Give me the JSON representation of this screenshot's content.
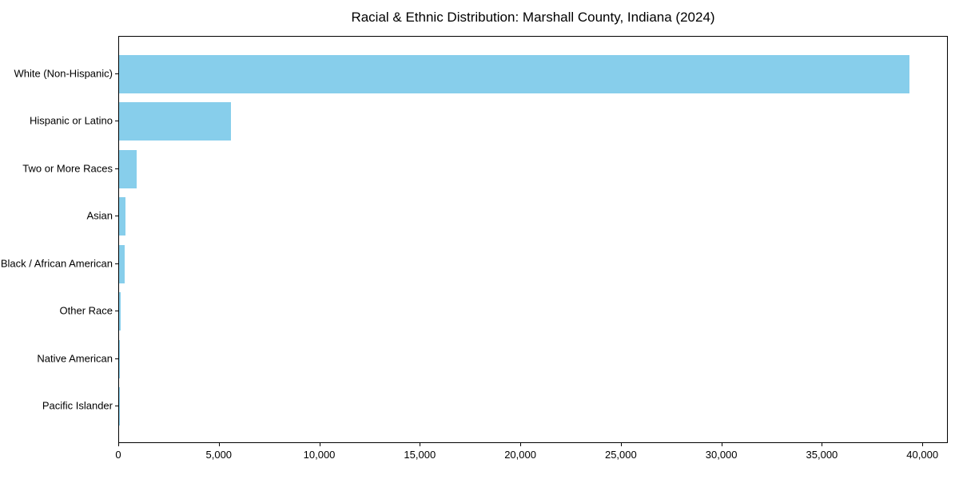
{
  "chart_data": {
    "type": "bar",
    "orientation": "horizontal",
    "title": "Racial & Ethnic Distribution: Marshall County, Indiana (2024)",
    "categories": [
      "White (Non-Hispanic)",
      "Hispanic or Latino",
      "Two or More Races",
      "Asian",
      "Black / African American",
      "Other Race",
      "Native American",
      "Pacific Islander"
    ],
    "values": [
      39300,
      5550,
      860,
      330,
      280,
      70,
      40,
      10
    ],
    "xlabel": "",
    "ylabel": "",
    "xlim": [
      0,
      41265
    ],
    "xticks": [
      0,
      5000,
      10000,
      15000,
      20000,
      25000,
      30000,
      35000,
      40000
    ],
    "xtick_labels": [
      "0",
      "5,000",
      "10,000",
      "15,000",
      "20,000",
      "25,000",
      "30,000",
      "35,000",
      "40,000"
    ],
    "bar_color": "#87CEEB",
    "spine_color": "#000000",
    "background_color": "#ffffff",
    "grid": false,
    "legend": null
  }
}
